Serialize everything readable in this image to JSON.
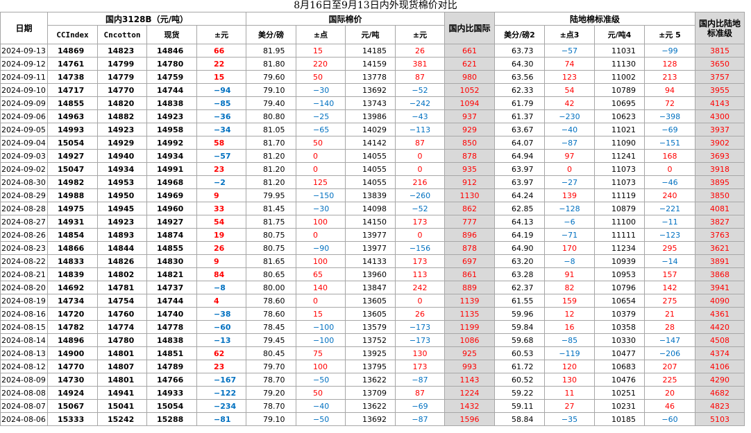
{
  "title": "8月16日至9月13日内外现货棉价对比",
  "headers": {
    "date": "日期",
    "group_domestic": "国内3128B（元/吨）",
    "group_intl": "国际棉价",
    "group_land": "陆地棉标准级",
    "cmp_intl": "国内比国际",
    "cmp_land": "国内比陆地标准级",
    "cols": [
      "CCIndex",
      "Cncotton",
      "现货",
      "±元",
      "美分/磅",
      "±点",
      "元/吨",
      "±元",
      "美分/磅2",
      "±点3",
      "元/吨4",
      "±元 5"
    ]
  },
  "rows": [
    {
      "date": "2024-09-13",
      "cci": "14869",
      "cnc": "14823",
      "spot": "14846",
      "d1": "66",
      "c": "81.95",
      "p": "15",
      "yt": "14185",
      "d2": "26",
      "vi": "661",
      "c2": "63.73",
      "p2": "−57",
      "yt2": "11031",
      "d3": "−99",
      "vl": "3815"
    },
    {
      "date": "2024-09-12",
      "cci": "14761",
      "cnc": "14799",
      "spot": "14780",
      "d1": "22",
      "c": "81.80",
      "p": "220",
      "yt": "14159",
      "d2": "381",
      "vi": "621",
      "c2": "64.30",
      "p2": "74",
      "yt2": "11130",
      "d3": "128",
      "vl": "3650"
    },
    {
      "date": "2024-09-11",
      "cci": "14738",
      "cnc": "14779",
      "spot": "14759",
      "d1": "15",
      "c": "79.60",
      "p": "50",
      "yt": "13778",
      "d2": "87",
      "vi": "980",
      "c2": "63.56",
      "p2": "123",
      "yt2": "11002",
      "d3": "213",
      "vl": "3757"
    },
    {
      "date": "2024-09-10",
      "cci": "14717",
      "cnc": "14770",
      "spot": "14744",
      "d1": "−94",
      "c": "79.10",
      "p": "−30",
      "yt": "13692",
      "d2": "−52",
      "vi": "1052",
      "c2": "62.33",
      "p2": "54",
      "yt2": "10789",
      "d3": "94",
      "vl": "3955"
    },
    {
      "date": "2024-09-09",
      "cci": "14855",
      "cnc": "14820",
      "spot": "14838",
      "d1": "−85",
      "c": "79.40",
      "p": "−140",
      "yt": "13743",
      "d2": "−242",
      "vi": "1094",
      "c2": "61.79",
      "p2": "42",
      "yt2": "10695",
      "d3": "72",
      "vl": "4143"
    },
    {
      "date": "2024-09-06",
      "cci": "14963",
      "cnc": "14882",
      "spot": "14923",
      "d1": "−36",
      "c": "80.80",
      "p": "−25",
      "yt": "13986",
      "d2": "−43",
      "vi": "937",
      "c2": "61.37",
      "p2": "−230",
      "yt2": "10623",
      "d3": "−398",
      "vl": "4300"
    },
    {
      "date": "2024-09-05",
      "cci": "14993",
      "cnc": "14923",
      "spot": "14958",
      "d1": "−34",
      "c": "81.05",
      "p": "−65",
      "yt": "14029",
      "d2": "−113",
      "vi": "929",
      "c2": "63.67",
      "p2": "−40",
      "yt2": "11021",
      "d3": "−69",
      "vl": "3937"
    },
    {
      "date": "2024-09-04",
      "cci": "15054",
      "cnc": "14929",
      "spot": "14992",
      "d1": "58",
      "c": "81.70",
      "p": "50",
      "yt": "14142",
      "d2": "87",
      "vi": "850",
      "c2": "64.07",
      "p2": "−87",
      "yt2": "11090",
      "d3": "−151",
      "vl": "3902"
    },
    {
      "date": "2024-09-03",
      "cci": "14927",
      "cnc": "14940",
      "spot": "14934",
      "d1": "−57",
      "c": "81.20",
      "p": "0",
      "yt": "14055",
      "d2": "0",
      "vi": "878",
      "c2": "64.94",
      "p2": "97",
      "yt2": "11241",
      "d3": "168",
      "vl": "3693"
    },
    {
      "date": "2024-09-02",
      "cci": "15047",
      "cnc": "14934",
      "spot": "14991",
      "d1": "23",
      "c": "81.20",
      "p": "0",
      "yt": "14055",
      "d2": "0",
      "vi": "935",
      "c2": "63.97",
      "p2": "0",
      "yt2": "11073",
      "d3": "0",
      "vl": "3918"
    },
    {
      "date": "2024-08-30",
      "cci": "14982",
      "cnc": "14953",
      "spot": "14968",
      "d1": "−2",
      "c": "81.20",
      "p": "125",
      "yt": "14055",
      "d2": "216",
      "vi": "912",
      "c2": "63.97",
      "p2": "−27",
      "yt2": "11073",
      "d3": "−46",
      "vl": "3895"
    },
    {
      "date": "2024-08-29",
      "cci": "14988",
      "cnc": "14950",
      "spot": "14969",
      "d1": "9",
      "c": "79.95",
      "p": "−150",
      "yt": "13839",
      "d2": "−260",
      "vi": "1130",
      "c2": "64.24",
      "p2": "139",
      "yt2": "11119",
      "d3": "240",
      "vl": "3850"
    },
    {
      "date": "2024-08-28",
      "cci": "14975",
      "cnc": "14945",
      "spot": "14960",
      "d1": "33",
      "c": "81.45",
      "p": "−30",
      "yt": "14098",
      "d2": "−52",
      "vi": "862",
      "c2": "62.85",
      "p2": "−128",
      "yt2": "10879",
      "d3": "−221",
      "vl": "4081"
    },
    {
      "date": "2024-08-27",
      "cci": "14931",
      "cnc": "14923",
      "spot": "14927",
      "d1": "54",
      "c": "81.75",
      "p": "100",
      "yt": "14150",
      "d2": "173",
      "vi": "777",
      "c2": "64.13",
      "p2": "−6",
      "yt2": "11100",
      "d3": "−11",
      "vl": "3827"
    },
    {
      "date": "2024-08-26",
      "cci": "14854",
      "cnc": "14893",
      "spot": "14874",
      "d1": "19",
      "c": "80.75",
      "p": "0",
      "yt": "13977",
      "d2": "0",
      "vi": "896",
      "c2": "64.19",
      "p2": "−71",
      "yt2": "11111",
      "d3": "−123",
      "vl": "3763"
    },
    {
      "date": "2024-08-23",
      "cci": "14866",
      "cnc": "14844",
      "spot": "14855",
      "d1": "26",
      "c": "80.75",
      "p": "−90",
      "yt": "13977",
      "d2": "−156",
      "vi": "878",
      "c2": "64.90",
      "p2": "170",
      "yt2": "11234",
      "d3": "295",
      "vl": "3621"
    },
    {
      "date": "2024-08-22",
      "cci": "14833",
      "cnc": "14826",
      "spot": "14830",
      "d1": "9",
      "c": "81.65",
      "p": "100",
      "yt": "14133",
      "d2": "173",
      "vi": "697",
      "c2": "63.20",
      "p2": "−8",
      "yt2": "10939",
      "d3": "−14",
      "vl": "3891"
    },
    {
      "date": "2024-08-21",
      "cci": "14839",
      "cnc": "14802",
      "spot": "14821",
      "d1": "84",
      "c": "80.65",
      "p": "65",
      "yt": "13960",
      "d2": "113",
      "vi": "861",
      "c2": "63.28",
      "p2": "91",
      "yt2": "10953",
      "d3": "157",
      "vl": "3868"
    },
    {
      "date": "2024-08-20",
      "cci": "14692",
      "cnc": "14781",
      "spot": "14737",
      "d1": "−8",
      "c": "80.00",
      "p": "140",
      "yt": "13847",
      "d2": "242",
      "vi": "889",
      "c2": "62.37",
      "p2": "82",
      "yt2": "10796",
      "d3": "142",
      "vl": "3941"
    },
    {
      "date": "2024-08-19",
      "cci": "14734",
      "cnc": "14754",
      "spot": "14744",
      "d1": "4",
      "c": "78.60",
      "p": "0",
      "yt": "13605",
      "d2": "0",
      "vi": "1139",
      "c2": "61.55",
      "p2": "159",
      "yt2": "10654",
      "d3": "275",
      "vl": "4090"
    },
    {
      "date": "2024-08-16",
      "cci": "14720",
      "cnc": "14760",
      "spot": "14740",
      "d1": "−38",
      "c": "78.60",
      "p": "15",
      "yt": "13605",
      "d2": "26",
      "vi": "1135",
      "c2": "59.96",
      "p2": "12",
      "yt2": "10379",
      "d3": "21",
      "vl": "4361"
    },
    {
      "date": "2024-08-15",
      "cci": "14782",
      "cnc": "14774",
      "spot": "14778",
      "d1": "−60",
      "c": "78.45",
      "p": "−100",
      "yt": "13579",
      "d2": "−173",
      "vi": "1199",
      "c2": "59.84",
      "p2": "16",
      "yt2": "10358",
      "d3": "28",
      "vl": "4420"
    },
    {
      "date": "2024-08-14",
      "cci": "14896",
      "cnc": "14780",
      "spot": "14838",
      "d1": "−13",
      "c": "79.45",
      "p": "−100",
      "yt": "13752",
      "d2": "−173",
      "vi": "1086",
      "c2": "59.68",
      "p2": "−85",
      "yt2": "10330",
      "d3": "−147",
      "vl": "4508"
    },
    {
      "date": "2024-08-13",
      "cci": "14900",
      "cnc": "14801",
      "spot": "14851",
      "d1": "62",
      "c": "80.45",
      "p": "75",
      "yt": "13925",
      "d2": "130",
      "vi": "925",
      "c2": "60.53",
      "p2": "−119",
      "yt2": "10477",
      "d3": "−206",
      "vl": "4374"
    },
    {
      "date": "2024-08-12",
      "cci": "14770",
      "cnc": "14807",
      "spot": "14789",
      "d1": "23",
      "c": "79.70",
      "p": "100",
      "yt": "13795",
      "d2": "173",
      "vi": "993",
      "c2": "61.72",
      "p2": "120",
      "yt2": "10683",
      "d3": "207",
      "vl": "4106"
    },
    {
      "date": "2024-08-09",
      "cci": "14730",
      "cnc": "14801",
      "spot": "14766",
      "d1": "−167",
      "c": "78.70",
      "p": "−50",
      "yt": "13622",
      "d2": "−87",
      "vi": "1143",
      "c2": "60.52",
      "p2": "130",
      "yt2": "10476",
      "d3": "225",
      "vl": "4290"
    },
    {
      "date": "2024-08-08",
      "cci": "14924",
      "cnc": "14941",
      "spot": "14933",
      "d1": "−122",
      "c": "79.20",
      "p": "50",
      "yt": "13709",
      "d2": "87",
      "vi": "1224",
      "c2": "59.22",
      "p2": "11",
      "yt2": "10251",
      "d3": "20",
      "vl": "4682"
    },
    {
      "date": "2024-08-07",
      "cci": "15067",
      "cnc": "15041",
      "spot": "15054",
      "d1": "−234",
      "c": "78.70",
      "p": "−40",
      "yt": "13622",
      "d2": "−69",
      "vi": "1432",
      "c2": "59.11",
      "p2": "27",
      "yt2": "10231",
      "d3": "46",
      "vl": "4823"
    },
    {
      "date": "2024-08-06",
      "cci": "15333",
      "cnc": "15242",
      "spot": "15288",
      "d1": "−81",
      "c": "79.10",
      "p": "−50",
      "yt": "13692",
      "d2": "−87",
      "vi": "1596",
      "c2": "58.84",
      "p2": "−35",
      "yt2": "10185",
      "d3": "−60",
      "vl": "5103"
    }
  ],
  "colors": {
    "positive": "#ff0000",
    "negative": "#0070c0",
    "compare_bg": "#d9d9d9",
    "grid": "#a6a6a6"
  }
}
